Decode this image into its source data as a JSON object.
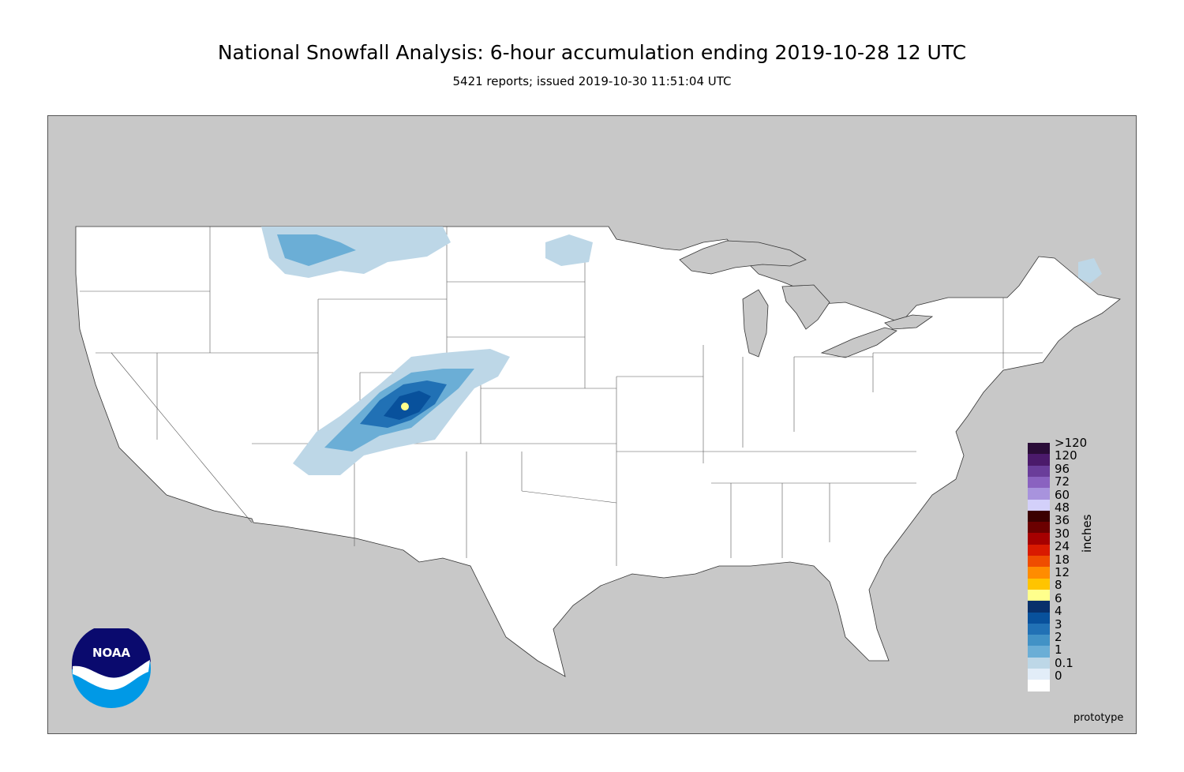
{
  "header": {
    "title": "National Snowfall Analysis: 6-hour accumulation ending 2019-10-28 12 UTC",
    "subtitle": "5421 reports; issued 2019-10-30 11:51:04 UTC"
  },
  "legend": {
    "units": "inches",
    "levels": [
      {
        "label": ">120",
        "color": "#2a0c38"
      },
      {
        "label": "120",
        "color": "#4b1a6b"
      },
      {
        "label": "96",
        "color": "#6a3d9a"
      },
      {
        "label": "72",
        "color": "#8a62c0"
      },
      {
        "label": "60",
        "color": "#a893dd"
      },
      {
        "label": "48",
        "color": "#d3d0fa"
      },
      {
        "label": "36",
        "color": "#3b0000"
      },
      {
        "label": "30",
        "color": "#6b0000"
      },
      {
        "label": "24",
        "color": "#a60000"
      },
      {
        "label": "18",
        "color": "#d91a00"
      },
      {
        "label": "12",
        "color": "#ef4d00"
      },
      {
        "label": "8",
        "color": "#ff8c00"
      },
      {
        "label": "6",
        "color": "#ffc400"
      },
      {
        "label": "4",
        "color": "#ffff8c"
      },
      {
        "label": "3",
        "color": "#08306b"
      },
      {
        "label": "2",
        "color": "#08519c"
      },
      {
        "label": "1",
        "color": "#2171b5"
      },
      {
        "label": "0.1",
        "color": "#4292c6"
      },
      {
        "label": "0",
        "color": "#6baed6"
      },
      {
        "label": "",
        "color": "#bdd7e7"
      },
      {
        "label": "",
        "color": "#e2edf8"
      },
      {
        "label": "",
        "color": "#ffffff"
      }
    ]
  },
  "footer": {
    "note": "prototype",
    "logo_text": "NOAA"
  },
  "colors": {
    "land_outside": "#c8c8c8",
    "conus_fill": "#ffffff",
    "water": "#c8c8c8"
  }
}
